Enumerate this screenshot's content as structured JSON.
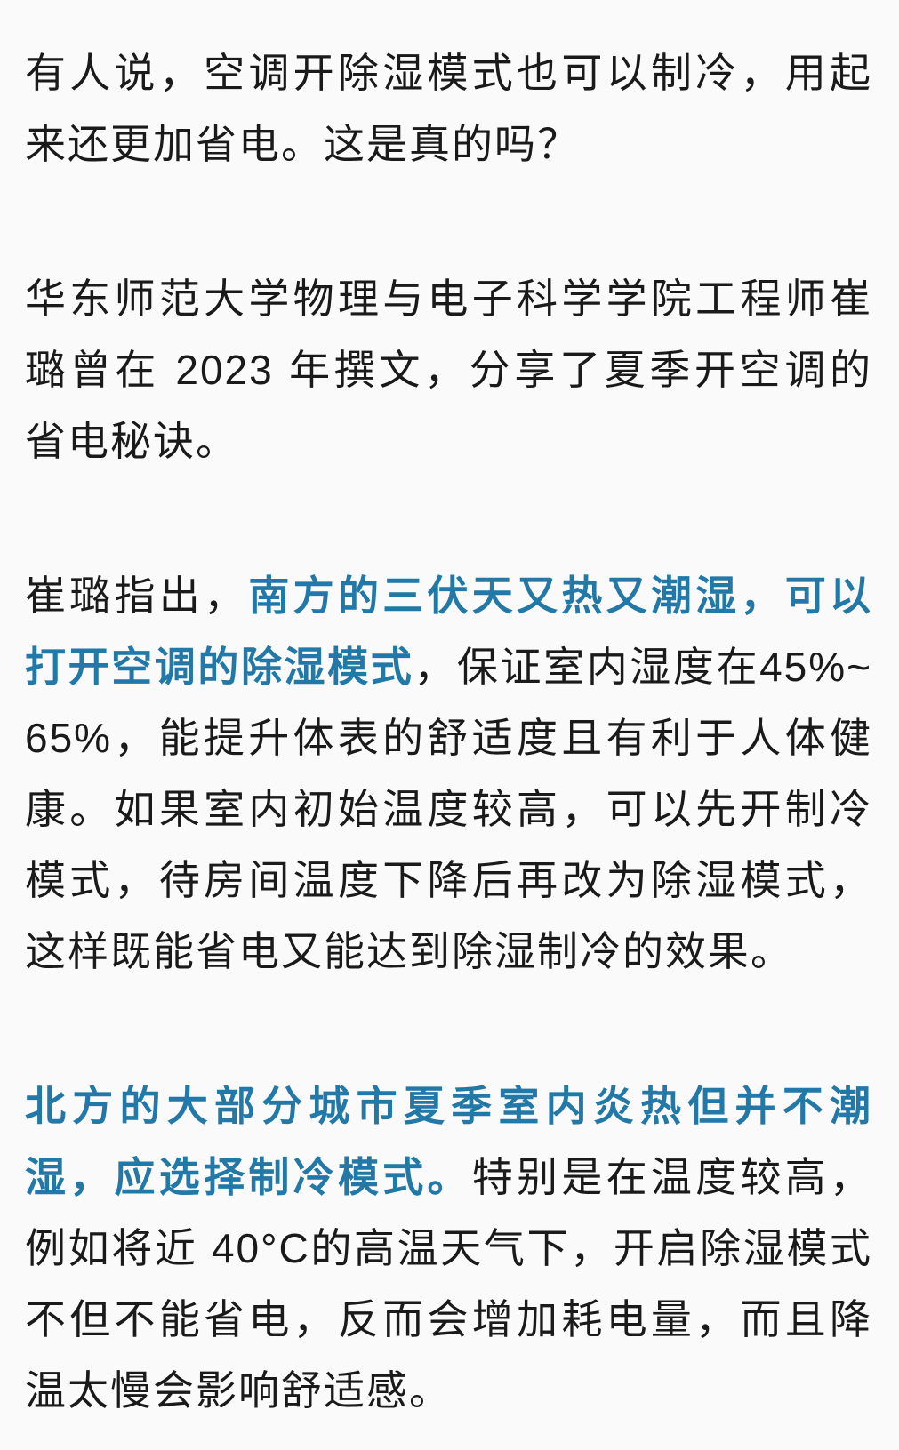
{
  "page": {
    "background": "#fafafa",
    "text_color": "#1a1a1a",
    "emphasis_color": "#2279a8"
  },
  "article": {
    "paragraphs": [
      {
        "segments": [
          {
            "text": "有人说，空调开除湿模式也可以制冷，用起来还更加省电。这是真的吗？",
            "emphasis": false
          }
        ]
      },
      {
        "segments": [
          {
            "text": "华东师范大学物理与电子科学学院工程师崔璐曾在 2023 年撰文，分享了夏季开空调的省电秘诀。",
            "emphasis": false
          }
        ]
      },
      {
        "segments": [
          {
            "text": "崔璐指出，",
            "emphasis": false
          },
          {
            "text": "南方的三伏天又热又潮湿，可以打开空调的除湿模式",
            "emphasis": true
          },
          {
            "text": "，保证室内湿度在45%~65%，能提升体表的舒适度且有利于人体健康。如果室内初始温度较高，可以先开制冷模式，待房间温度下降后再改为除湿模式，这样既能省电又能达到除湿制冷的效果。",
            "emphasis": false
          }
        ]
      },
      {
        "segments": [
          {
            "text": "北方的大部分城市夏季室内炎热但并不潮湿，应选择制冷模式。",
            "emphasis": true
          },
          {
            "text": "特别是在温度较高，例如将近 40°C的高温天气下，开启除湿模式不但不能省电，反而会增加耗电量，而且降温太慢会影响舒适感。",
            "emphasis": false
          }
        ]
      }
    ]
  }
}
